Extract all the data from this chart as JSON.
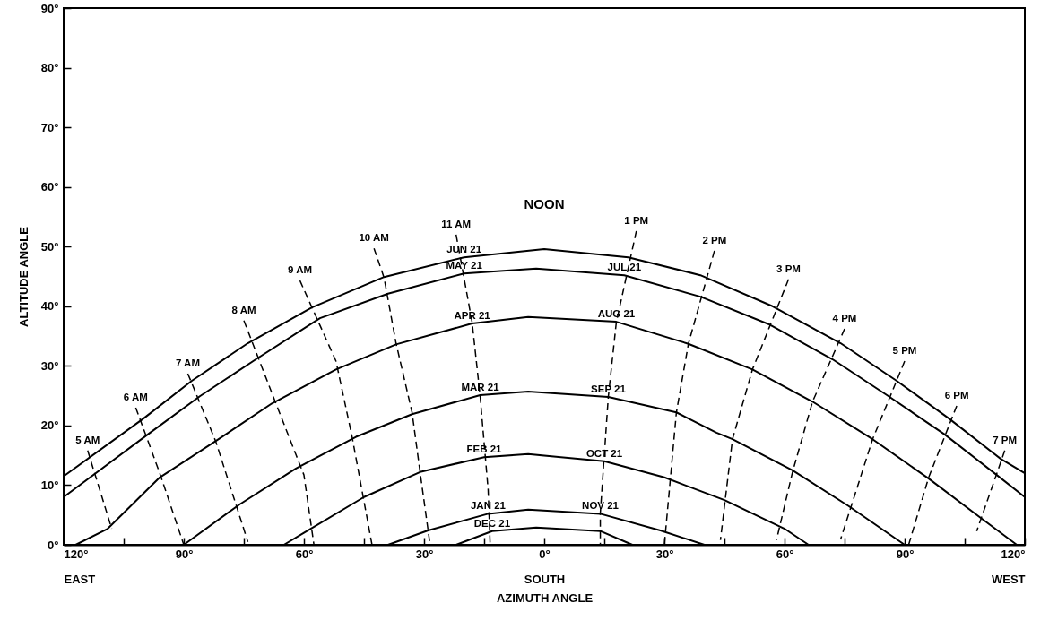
{
  "chart_data": {
    "type": "line",
    "xlabel": "AZIMUTH ANGLE",
    "ylabel": "ALTITUDE ANGLE",
    "xlim": [
      -120,
      120
    ],
    "xticks": [
      {
        "value": -120,
        "label": "120°\nEAST"
      },
      {
        "value": -105,
        "label": null
      },
      {
        "value": -90,
        "label": "90°"
      },
      {
        "value": -75,
        "label": null
      },
      {
        "value": -60,
        "label": "60°"
      },
      {
        "value": -45,
        "label": null
      },
      {
        "value": -30,
        "label": "30°"
      },
      {
        "value": -15,
        "label": null
      },
      {
        "value": 0,
        "label": "0°\nSOUTH"
      },
      {
        "value": 15,
        "label": null
      },
      {
        "value": 30,
        "label": "30°"
      },
      {
        "value": 45,
        "label": null
      },
      {
        "value": 60,
        "label": "60°"
      },
      {
        "value": 75,
        "label": null
      },
      {
        "value": 90,
        "label": "90°"
      },
      {
        "value": 105,
        "label": null
      },
      {
        "value": 120,
        "label": "120°\nWEST"
      }
    ],
    "ylim": [
      0,
      90
    ],
    "yticks": [
      {
        "value": 0,
        "label": "0°"
      },
      {
        "value": 10,
        "label": "10°"
      },
      {
        "value": 20,
        "label": "20°"
      },
      {
        "value": 30,
        "label": "30°"
      },
      {
        "value": 40,
        "label": "40°"
      },
      {
        "value": 50,
        "label": "50°"
      },
      {
        "value": 60,
        "label": "60°"
      },
      {
        "value": 70,
        "label": "70°"
      },
      {
        "value": 80,
        "label": "80°"
      },
      {
        "value": 90,
        "label": "90°"
      }
    ],
    "grid": false,
    "series": [
      {
        "name": "JUN 21",
        "color": "#000000",
        "line_style": "solid",
        "x": [
          -120,
          -100,
          -88,
          -74,
          -58,
          -40,
          -20,
          0,
          21,
          39,
          57,
          74,
          88,
          101,
          114,
          120
        ],
        "values": [
          11.5,
          21.2,
          27.5,
          33.8,
          39.8,
          44.9,
          48.2,
          49.6,
          48.2,
          45.2,
          40.0,
          33.8,
          27.5,
          21.2,
          14.4,
          12.0
        ]
      },
      {
        "name": "MAY 21",
        "color": "#000000",
        "line_style": "solid",
        "x": [
          -120,
          -99,
          -86,
          -72,
          -56,
          -39,
          -20,
          -2,
          20,
          39,
          56,
          72,
          86,
          100,
          113,
          120
        ],
        "values": [
          8.0,
          18.5,
          24.9,
          31.1,
          38.0,
          42.1,
          45.5,
          46.3,
          45.2,
          41.6,
          37.0,
          31.1,
          24.9,
          18.5,
          11.7,
          8.0
        ]
      },
      {
        "name": "APR 21",
        "color": "#000000",
        "line_style": "solid",
        "x": [
          -117,
          -109,
          -96,
          -82,
          -68,
          -52,
          -37,
          -18,
          -4,
          18,
          36,
          52,
          67,
          82,
          96,
          109,
          118
        ],
        "values": [
          0,
          2.7,
          11.3,
          17.4,
          23.7,
          29.4,
          33.6,
          37.1,
          38.2,
          37.4,
          33.7,
          29.4,
          24.0,
          17.7,
          11.1,
          4.5,
          0
        ]
      },
      {
        "name": "MAR 21",
        "color": "#000000",
        "line_style": "solid",
        "x": [
          -90,
          -76,
          -62,
          -47,
          -33,
          -16,
          -4,
          16,
          33,
          43,
          47,
          62,
          76,
          90
        ],
        "values": [
          0,
          6.8,
          12.8,
          18.1,
          21.9,
          25.1,
          25.7,
          24.8,
          22.2,
          18.8,
          17.7,
          12.5,
          6.5,
          0
        ]
      },
      {
        "name": "FEB 21",
        "color": "#000000",
        "line_style": "solid",
        "x": [
          -65,
          -60,
          -45,
          -31,
          -15,
          -4,
          15,
          30,
          45,
          60,
          66
        ],
        "values": [
          0,
          2.0,
          8.0,
          12.2,
          14.7,
          15.2,
          14.0,
          11.3,
          7.5,
          2.7,
          0
        ]
      },
      {
        "name": "JAN 21",
        "color": "#000000",
        "line_style": "solid",
        "x": [
          -39,
          -29,
          -14,
          -4,
          14,
          29,
          40
        ],
        "values": [
          0,
          2.4,
          5.2,
          5.9,
          5.2,
          2.4,
          0
        ]
      },
      {
        "name": "DEC 21",
        "color": "#000000",
        "line_style": "solid",
        "x": [
          -22,
          -13,
          -2,
          14,
          22
        ],
        "values": [
          0,
          2.3,
          2.9,
          2.3,
          0
        ]
      },
      {
        "name": "5 AM",
        "color": "#000000",
        "line_style": "dashed",
        "x": [
          -114,
          -108
        ],
        "values": [
          15.8,
          2.7
        ]
      },
      {
        "name": "6 AM",
        "color": "#000000",
        "line_style": "dashed",
        "x": [
          -102,
          -96,
          -90
        ],
        "values": [
          23.0,
          12.0,
          0
        ]
      },
      {
        "name": "7 AM",
        "color": "#000000",
        "line_style": "dashed",
        "x": [
          -89,
          -82,
          -74
        ],
        "values": [
          28.7,
          17.3,
          0.5
        ]
      },
      {
        "name": "8 AM",
        "color": "#000000",
        "line_style": "dashed",
        "x": [
          -75,
          -67,
          -60,
          -57.5
        ],
        "values": [
          37.6,
          23.7,
          11.7,
          0
        ]
      },
      {
        "name": "9 AM",
        "color": "#000000",
        "line_style": "dashed",
        "x": [
          -61,
          -52,
          -48,
          -43
        ],
        "values": [
          44.3,
          30.8,
          18.2,
          0
        ]
      },
      {
        "name": "10 AM",
        "color": "#000000",
        "line_style": "dashed",
        "x": [
          -42.5,
          -40,
          -37,
          -33,
          -31,
          -28.5
        ],
        "values": [
          49.7,
          44.8,
          33.8,
          22.2,
          12.2,
          0
        ]
      },
      {
        "name": "11 AM",
        "color": "#000000",
        "line_style": "dashed",
        "x": [
          -22,
          -18,
          -16,
          -14,
          -13.5
        ],
        "values": [
          52.0,
          37.3,
          24.9,
          9.2,
          0
        ]
      },
      {
        "name": "1 PM",
        "color": "#000000",
        "line_style": "dashed",
        "x": [
          23,
          18,
          16,
          14,
          14
        ],
        "values": [
          52.6,
          37.3,
          24.8,
          5.3,
          0
        ]
      },
      {
        "name": "2 PM",
        "color": "#000000",
        "line_style": "dashed",
        "x": [
          42.5,
          36,
          33,
          30
        ],
        "values": [
          49.3,
          33.7,
          22.2,
          0
        ]
      },
      {
        "name": "3 PM",
        "color": "#000000",
        "line_style": "dashed",
        "x": [
          61,
          52,
          47,
          44
        ],
        "values": [
          44.5,
          29.4,
          17.7,
          0.8
        ]
      },
      {
        "name": "4 PM",
        "color": "#000000",
        "line_style": "dashed",
        "x": [
          75,
          67,
          62,
          58
        ],
        "values": [
          36.2,
          24.0,
          12.2,
          0.8
        ]
      },
      {
        "name": "5 PM",
        "color": "#000000",
        "line_style": "dashed",
        "x": [
          90,
          82,
          74
        ],
        "values": [
          30.8,
          17.7,
          0.9
        ]
      },
      {
        "name": "6 PM",
        "color": "#000000",
        "line_style": "dashed",
        "x": [
          103,
          96,
          91
        ],
        "values": [
          23.3,
          11.3,
          0
        ]
      },
      {
        "name": "7 PM",
        "color": "#000000",
        "line_style": "dashed",
        "x": [
          115,
          108
        ],
        "values": [
          15.8,
          2.3
        ]
      }
    ],
    "annotations": [
      "NOON",
      {
        "text": "JUL 21",
        "x": 20,
        "y": 45.2
      },
      {
        "text": "AUG 21",
        "x": 18,
        "y": 37.4
      },
      {
        "text": "SEP 21",
        "x": 16,
        "y": 24.8
      },
      {
        "text": "OCT 21",
        "x": 15,
        "y": 14.0
      },
      {
        "text": "NOV 21",
        "x": 14,
        "y": 5.2
      }
    ]
  }
}
